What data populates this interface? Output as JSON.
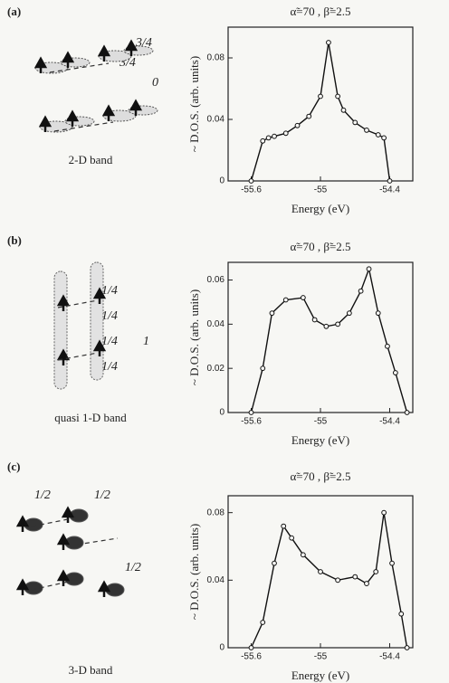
{
  "chart_data": [
    {
      "type": "line",
      "title": "α̃=70 ,  β̃=2.5",
      "x_label": "Energy (eV)",
      "y_label": "~ D.O.S. (arb. units)",
      "color": "#111111",
      "x": [
        -55.6,
        -55.5,
        -55.45,
        -55.4,
        -55.3,
        -55.2,
        -55.1,
        -55.0,
        -54.93,
        -54.85,
        -54.8,
        -54.7,
        -54.6,
        -54.5,
        -54.45,
        -54.4
      ],
      "values": [
        0,
        0.026,
        0.028,
        0.029,
        0.031,
        0.036,
        0.042,
        0.055,
        0.09,
        0.055,
        0.046,
        0.038,
        0.033,
        0.03,
        0.028,
        0
      ],
      "xlim": [
        -55.8,
        -54.2
      ],
      "ylim": [
        0,
        0.1
      ],
      "xticks": [
        -55.6,
        -55,
        -54.4
      ],
      "yticks": [
        0,
        0.04,
        0.08
      ]
    },
    {
      "type": "line",
      "title": "α̃=70 ,  β̃=2.5",
      "x_label": "Energy (eV)",
      "y_label": "~ D.O.S. (arb. units)",
      "color": "#111111",
      "x": [
        -55.6,
        -55.5,
        -55.42,
        -55.3,
        -55.15,
        -55.05,
        -54.95,
        -54.85,
        -54.75,
        -54.65,
        -54.58,
        -54.5,
        -54.42,
        -54.35,
        -54.25
      ],
      "values": [
        0,
        0.02,
        0.045,
        0.051,
        0.052,
        0.042,
        0.039,
        0.04,
        0.045,
        0.055,
        0.065,
        0.045,
        0.03,
        0.018,
        0
      ],
      "xlim": [
        -55.8,
        -54.2
      ],
      "ylim": [
        0,
        0.068
      ],
      "xticks": [
        -55.6,
        -55,
        -54.4
      ],
      "yticks": [
        0,
        0.02,
        0.04,
        0.06
      ]
    },
    {
      "type": "line",
      "title": "α̃=70 ,  β̃=2.5",
      "x_label": "Energy (eV)",
      "y_label": "~ D.O.S. (arb. units)",
      "color": "#111111",
      "x": [
        -55.6,
        -55.5,
        -55.4,
        -55.32,
        -55.25,
        -55.15,
        -55.0,
        -54.85,
        -54.7,
        -54.6,
        -54.52,
        -54.45,
        -54.38,
        -54.3,
        -54.25
      ],
      "values": [
        0,
        0.015,
        0.05,
        0.072,
        0.065,
        0.055,
        0.045,
        0.04,
        0.042,
        0.038,
        0.045,
        0.08,
        0.05,
        0.02,
        0
      ],
      "xlim": [
        -55.8,
        -54.2
      ],
      "ylim": [
        0,
        0.09
      ],
      "xticks": [
        -55.6,
        -55,
        -54.4
      ],
      "yticks": [
        0,
        0.04,
        0.08
      ]
    }
  ],
  "panels": [
    {
      "label": "(a)",
      "band": "2-D band",
      "site_labels": [
        "3/4",
        "3/4",
        "0"
      ]
    },
    {
      "label": "(b)",
      "band": "quasi 1-D band",
      "site_labels": [
        "1/4",
        "1/4",
        "1",
        "1/4",
        "1/4"
      ]
    },
    {
      "label": "(c)",
      "band": "3-D band",
      "site_labels": [
        "1/2",
        "1/2",
        "1/2"
      ]
    }
  ]
}
